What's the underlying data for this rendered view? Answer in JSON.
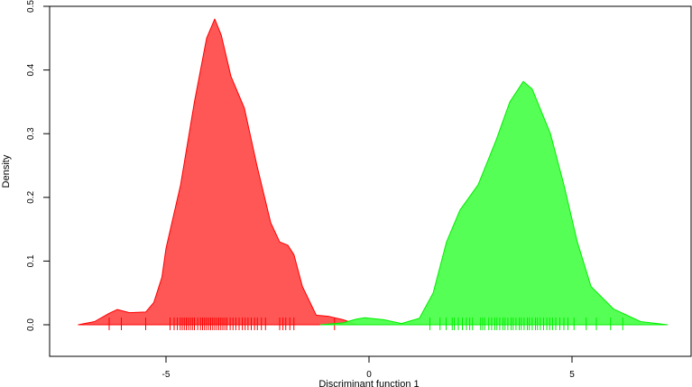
{
  "chart_data": {
    "type": "area",
    "title": "",
    "xlabel": "Discriminant function 1",
    "ylabel": "Density",
    "xlim": [
      -8.2,
      7.9
    ],
    "ylim": [
      0,
      0.5
    ],
    "xticks": [
      -5,
      0,
      5
    ],
    "yticks": [
      0.0,
      0.1,
      0.2,
      0.3,
      0.4,
      0.5
    ],
    "ytick_labels": [
      "0.0",
      "0.1",
      "0.2",
      "0.3",
      "0.4",
      "0.5"
    ],
    "grid": false,
    "series": [
      {
        "color": "#ff0000",
        "fill": "#ff4d4d",
        "x": [
          -7.16,
          -6.76,
          -6.4,
          -6.2,
          -5.9,
          -5.5,
          -5.3,
          -5.1,
          -5.0,
          -4.64,
          -4.3,
          -4.0,
          -3.8,
          -3.64,
          -3.4,
          -3.07,
          -2.76,
          -2.42,
          -2.2,
          -2.0,
          -1.85,
          -1.64,
          -1.3,
          -0.98,
          -0.64,
          -0.31
        ],
        "y": [
          0,
          0.005,
          0.018,
          0.024,
          0.019,
          0.02,
          0.035,
          0.075,
          0.12,
          0.22,
          0.35,
          0.45,
          0.48,
          0.455,
          0.39,
          0.34,
          0.25,
          0.16,
          0.13,
          0.125,
          0.11,
          0.06,
          0.015,
          0.013,
          0.008,
          0.001
        ],
        "rug": [
          -6.4,
          -6.1,
          -5.5,
          -4.9,
          -4.8,
          -4.72,
          -4.65,
          -4.6,
          -4.55,
          -4.5,
          -4.45,
          -4.4,
          -4.35,
          -4.3,
          -4.22,
          -4.15,
          -4.1,
          -4.05,
          -4.0,
          -3.95,
          -3.9,
          -3.85,
          -3.8,
          -3.75,
          -3.7,
          -3.65,
          -3.6,
          -3.55,
          -3.5,
          -3.42,
          -3.35,
          -3.28,
          -3.2,
          -3.12,
          -3.05,
          -2.98,
          -2.9,
          -2.82,
          -2.75,
          -2.65,
          -2.55,
          -2.2,
          -2.12,
          -2.05,
          -1.95,
          -1.85,
          -0.85
        ]
      },
      {
        "color": "#00ee00",
        "fill": "#4dff4d",
        "x": [
          -1.2,
          -0.64,
          -0.3,
          -0.1,
          0.36,
          0.8,
          1.24,
          1.58,
          1.91,
          2.24,
          2.69,
          3.13,
          3.47,
          3.8,
          4.02,
          4.47,
          4.8,
          5.13,
          5.47,
          6.02,
          6.69,
          7.35
        ],
        "y": [
          0,
          0.003,
          0.009,
          0.011,
          0.008,
          0.002,
          0.01,
          0.05,
          0.13,
          0.18,
          0.22,
          0.29,
          0.35,
          0.382,
          0.37,
          0.3,
          0.22,
          0.13,
          0.06,
          0.025,
          0.005,
          0
        ],
        "rug": [
          1.5,
          1.75,
          1.9,
          2.05,
          2.1,
          2.2,
          2.3,
          2.4,
          2.48,
          2.55,
          2.75,
          2.8,
          2.85,
          2.95,
          3.02,
          3.1,
          3.15,
          3.22,
          3.3,
          3.35,
          3.42,
          3.5,
          3.55,
          3.62,
          3.7,
          3.75,
          3.82,
          3.9,
          3.95,
          4.02,
          4.1,
          4.15,
          4.22,
          4.3,
          4.38,
          4.45,
          4.52,
          4.6,
          4.7,
          4.8,
          4.9,
          5.05,
          5.35,
          5.6,
          5.95,
          6.25
        ]
      }
    ]
  }
}
